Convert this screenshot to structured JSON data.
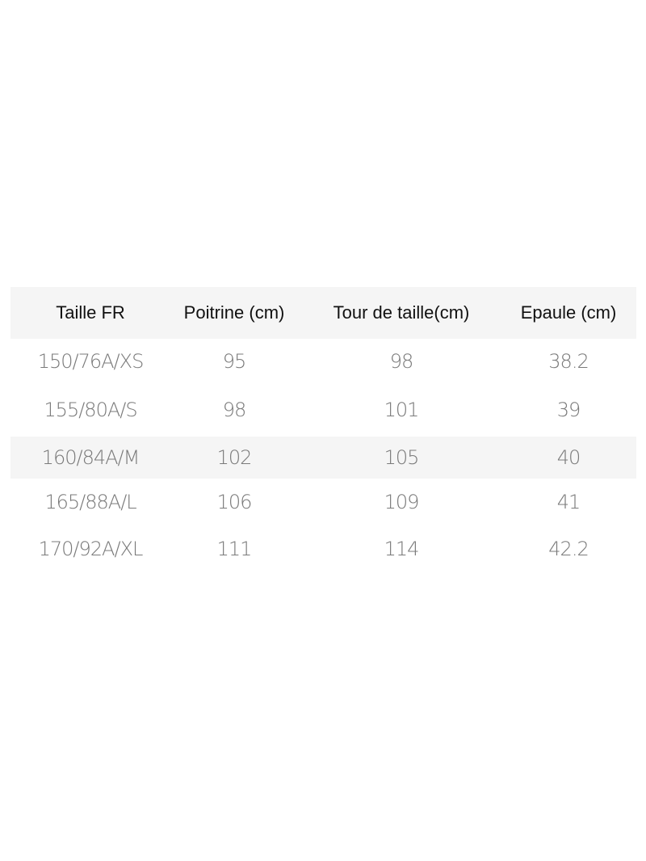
{
  "table": {
    "headers": [
      "Taille FR",
      "Poitrine (cm)",
      "Tour de taille(cm)",
      "Epaule (cm)"
    ],
    "rows": [
      [
        "150/76A/XS",
        "95",
        "98",
        "38.2"
      ],
      [
        "155/80A/S",
        "98",
        "101",
        "39"
      ],
      [
        "160/84A/M",
        "102",
        "105",
        "40"
      ],
      [
        "165/88A/L",
        "106",
        "109",
        "41"
      ],
      [
        "170/92A/XL",
        "111",
        "114",
        "42.2"
      ]
    ],
    "header_background": "#f5f5f5",
    "shaded_row_background": "#f5f5f5",
    "value_color": "#7a7a7a"
  }
}
